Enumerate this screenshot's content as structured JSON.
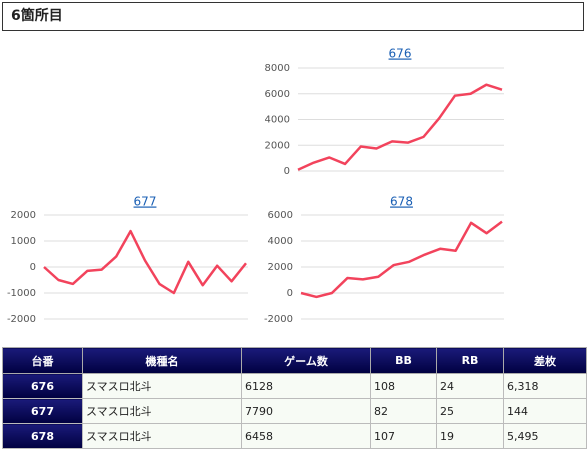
{
  "header": {
    "title": "6箇所目"
  },
  "chart_data": [
    {
      "type": "line",
      "title": "676",
      "color": "#f2435c",
      "grid": true,
      "values": [
        100,
        650,
        1050,
        550,
        1900,
        1750,
        2300,
        2200,
        2650,
        4100,
        5850,
        6000,
        6700,
        6318
      ],
      "ylim": [
        0,
        8000
      ],
      "yticks": [
        0,
        2000,
        4000,
        6000,
        8000
      ]
    },
    {
      "type": "line",
      "title": "677",
      "color": "#f2435c",
      "grid": true,
      "values": [
        0,
        -500,
        -650,
        -150,
        -100,
        400,
        1380,
        250,
        -650,
        -1000,
        200,
        -700,
        50,
        -550,
        144
      ],
      "ylim": [
        -2000,
        2000
      ],
      "yticks": [
        -2000,
        -1000,
        0,
        1000,
        2000
      ]
    },
    {
      "type": "line",
      "title": "678",
      "color": "#f2435c",
      "grid": true,
      "values": [
        0,
        -300,
        0,
        1150,
        1050,
        1250,
        2150,
        2400,
        2950,
        3400,
        3250,
        5400,
        4600,
        5495
      ],
      "ylim": [
        -2000,
        6000
      ],
      "yticks": [
        -2000,
        0,
        2000,
        4000,
        6000
      ]
    }
  ],
  "table": {
    "header": [
      "台番",
      "機種名",
      "ゲーム数",
      "BB",
      "RB",
      "差枚"
    ],
    "rows": [
      [
        "676",
        "スマスロ北斗",
        "6128",
        "108",
        "24",
        "6,318"
      ],
      [
        "677",
        "スマスロ北斗",
        "7790",
        "82",
        "25",
        "144"
      ],
      [
        "678",
        "スマスロ北斗",
        "6458",
        "107",
        "19",
        "5,495"
      ]
    ]
  }
}
